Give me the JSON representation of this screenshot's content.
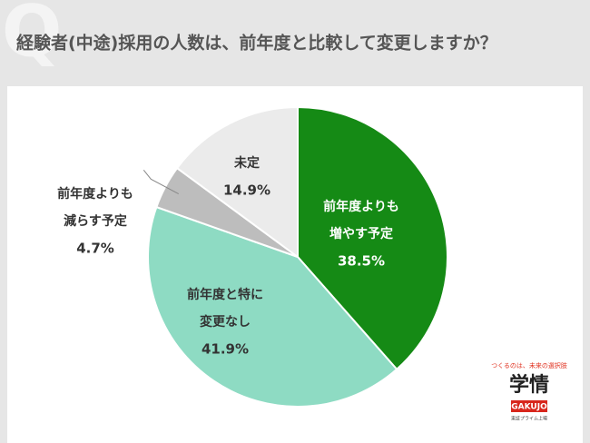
{
  "chart_data": {
    "type": "pie",
    "title": "経験者(中途)採用の人数は、前年度と比較して変更しますか？",
    "categories": [
      [
        "前年度よりも",
        "増やす予定"
      ],
      [
        "前年度と特に",
        "変更なし"
      ],
      [
        "前年度よりも",
        "減らす予定"
      ],
      [
        "未定"
      ]
    ],
    "values": [
      38.5,
      41.9,
      4.7,
      14.9
    ],
    "value_labels": [
      "38.5%",
      "41.9%",
      "4.7%",
      "14.9%"
    ],
    "colors": [
      "#158a15",
      "#8edbc3",
      "#bdbdbd",
      "#ebebeb"
    ]
  },
  "logo": {
    "tagline": "つくるのは、未来の選択肢",
    "name": "学情",
    "roman": "GAKUJO",
    "note": "東証プライム上場"
  }
}
